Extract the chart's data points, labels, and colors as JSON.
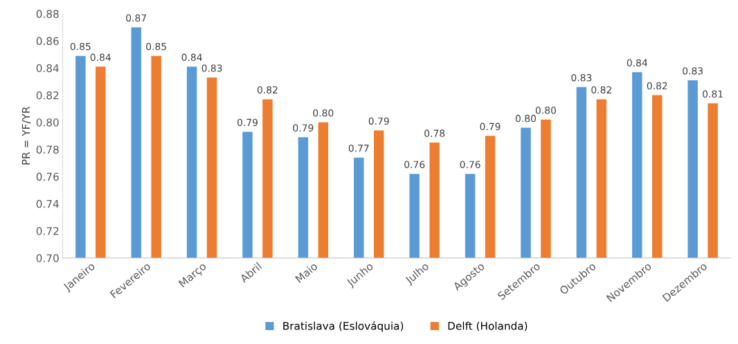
{
  "chart_data": {
    "type": "bar",
    "ylabel": "PR = YF/YR",
    "categories": [
      "Janeiro",
      "Fevereiro",
      "Março",
      "Abril",
      "Maio",
      "Junho",
      "Julho",
      "Agosto",
      "Setembro",
      "Outubro",
      "Novembro",
      "Dezembro"
    ],
    "series": [
      {
        "name": "Bratislava (Eslováquia)",
        "color": "#5b9bd5",
        "values": [
          0.849,
          0.87,
          0.841,
          0.793,
          0.789,
          0.774,
          0.762,
          0.762,
          0.796,
          0.826,
          0.837,
          0.831
        ],
        "value_labels": [
          "0.85",
          "0.87",
          "0.84",
          "0.79",
          "0.79",
          "0.77",
          "0.76",
          "0.76",
          "0.80",
          "0.83",
          "0.84",
          "0.83"
        ]
      },
      {
        "name": "Delft (Holanda)",
        "color": "#ed7d31",
        "values": [
          0.841,
          0.849,
          0.833,
          0.817,
          0.8,
          0.794,
          0.785,
          0.79,
          0.802,
          0.817,
          0.82,
          0.814
        ],
        "value_labels": [
          "0.84",
          "0.85",
          "0.83",
          "0.82",
          "0.80",
          "0.79",
          "0.78",
          "0.79",
          "0.80",
          "0.82",
          "0.82",
          "0.81"
        ]
      }
    ],
    "ylim": [
      0.7,
      0.88
    ],
    "yticks": [
      {
        "value": 0.7,
        "label": "0.70"
      },
      {
        "value": 0.72,
        "label": "0.72"
      },
      {
        "value": 0.74,
        "label": "0.74"
      },
      {
        "value": 0.76,
        "label": "0.76"
      },
      {
        "value": 0.78,
        "label": "0.78"
      },
      {
        "value": 0.8,
        "label": "0.80"
      },
      {
        "value": 0.82,
        "label": "0.82"
      },
      {
        "value": 0.84,
        "label": "0.84"
      },
      {
        "value": 0.86,
        "label": "0.86"
      },
      {
        "value": 0.88,
        "label": "0.88"
      }
    ],
    "grid": false,
    "legend": "bottom"
  }
}
